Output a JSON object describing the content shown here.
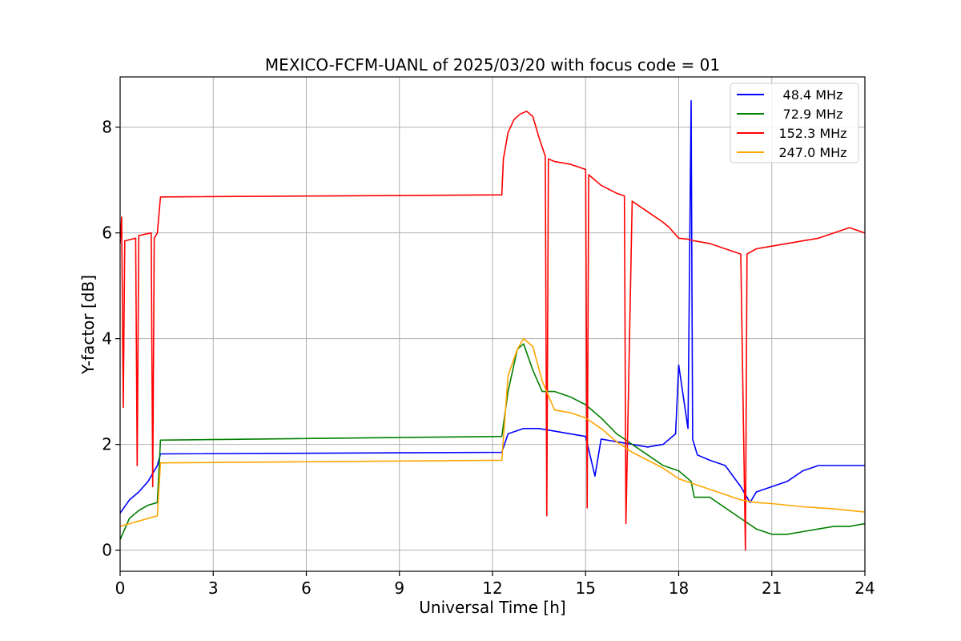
{
  "chart_data": {
    "type": "line",
    "title": "MEXICO-FCFM-UANL of 2025/03/20 with focus code = 01",
    "xlabel": "Universal Time [h]",
    "ylabel": "Y-factor [dB]",
    "xlim": [
      0,
      24
    ],
    "ylim": [
      -0.4,
      8.95
    ],
    "xticks": [
      "0",
      "3",
      "6",
      "9",
      "12",
      "15",
      "18",
      "21",
      "24"
    ],
    "yticks": [
      "0",
      "2",
      "4",
      "6",
      "8"
    ],
    "grid": true,
    "legend_position": "top-right",
    "series": [
      {
        "name": " 48.4 MHz",
        "color": "#0000ff",
        "x": [
          0.0,
          0.3,
          0.6,
          0.9,
          1.2,
          1.3,
          12.3,
          12.5,
          13.0,
          13.5,
          14.0,
          14.5,
          15.0,
          15.3,
          15.5,
          16.0,
          16.5,
          17.0,
          17.5,
          17.9,
          18.0,
          18.3,
          18.4,
          18.45,
          18.6,
          19.0,
          19.5,
          20.0,
          20.3,
          20.5,
          21.0,
          21.5,
          22.0,
          22.5,
          23.0,
          23.5,
          24.0
        ],
        "y": [
          0.7,
          0.95,
          1.1,
          1.3,
          1.6,
          1.82,
          1.85,
          2.2,
          2.3,
          2.3,
          2.25,
          2.2,
          2.15,
          1.4,
          2.1,
          2.05,
          2.0,
          1.95,
          2.0,
          2.2,
          3.5,
          2.3,
          8.5,
          2.1,
          1.8,
          1.7,
          1.6,
          1.2,
          0.9,
          1.1,
          1.2,
          1.3,
          1.5,
          1.6,
          1.6,
          1.6,
          1.6
        ]
      },
      {
        "name": " 72.9 MHz",
        "color": "#008000",
        "x": [
          0.0,
          0.3,
          0.6,
          0.9,
          1.2,
          1.3,
          12.3,
          12.5,
          12.8,
          13.0,
          13.3,
          13.6,
          14.0,
          14.5,
          15.0,
          15.5,
          16.0,
          16.5,
          17.0,
          17.5,
          18.0,
          18.4,
          18.5,
          19.0,
          19.5,
          20.0,
          20.5,
          21.0,
          21.5,
          22.0,
          22.5,
          23.0,
          23.5,
          24.0
        ],
        "y": [
          0.2,
          0.6,
          0.75,
          0.85,
          0.9,
          2.08,
          2.15,
          3.0,
          3.8,
          3.9,
          3.4,
          3.0,
          3.0,
          2.9,
          2.75,
          2.5,
          2.2,
          2.0,
          1.8,
          1.6,
          1.5,
          1.3,
          1.0,
          1.0,
          0.8,
          0.6,
          0.4,
          0.3,
          0.3,
          0.35,
          0.4,
          0.45,
          0.45,
          0.5
        ]
      },
      {
        "name": " 152.3 MHz",
        "color": "#ff0000",
        "x": [
          0.0,
          0.05,
          0.1,
          0.15,
          0.5,
          0.55,
          0.6,
          1.0,
          1.05,
          1.1,
          1.2,
          1.3,
          12.3,
          12.35,
          12.5,
          12.7,
          12.9,
          13.1,
          13.3,
          13.5,
          13.7,
          13.75,
          13.8,
          14.0,
          14.5,
          15.0,
          15.05,
          15.1,
          15.5,
          16.0,
          16.25,
          16.3,
          16.5,
          17.0,
          17.5,
          17.7,
          18.0,
          18.3,
          18.5,
          19.0,
          19.5,
          20.0,
          20.15,
          20.2,
          20.5,
          21.0,
          21.5,
          22.0,
          22.5,
          23.0,
          23.5,
          24.0
        ],
        "y": [
          5.8,
          6.3,
          2.7,
          5.85,
          5.9,
          1.6,
          5.95,
          6.0,
          1.2,
          5.9,
          6.0,
          6.68,
          6.72,
          7.4,
          7.9,
          8.15,
          8.25,
          8.3,
          8.2,
          7.8,
          7.45,
          0.65,
          7.4,
          7.35,
          7.3,
          7.2,
          0.8,
          7.1,
          6.9,
          6.75,
          6.7,
          0.5,
          6.6,
          6.4,
          6.2,
          6.1,
          5.9,
          5.88,
          5.85,
          5.8,
          5.7,
          5.6,
          0.0,
          5.6,
          5.7,
          5.75,
          5.8,
          5.85,
          5.9,
          6.0,
          6.1,
          6.0
        ]
      },
      {
        "name": " 247.0 MHz",
        "color": "#ffa500",
        "x": [
          0.0,
          0.3,
          0.6,
          0.9,
          1.2,
          1.3,
          12.3,
          12.5,
          12.8,
          13.0,
          13.3,
          13.6,
          14.0,
          14.5,
          15.0,
          15.5,
          16.0,
          16.5,
          17.0,
          17.5,
          18.0,
          18.5,
          19.0,
          19.5,
          20.0,
          20.5,
          21.0,
          21.5,
          22.0,
          22.5,
          23.0,
          23.5,
          24.0
        ],
        "y": [
          0.45,
          0.5,
          0.55,
          0.6,
          0.65,
          1.65,
          1.7,
          3.3,
          3.8,
          4.0,
          3.85,
          3.2,
          2.65,
          2.6,
          2.5,
          2.3,
          2.05,
          1.85,
          1.7,
          1.55,
          1.35,
          1.25,
          1.15,
          1.05,
          0.95,
          0.9,
          0.88,
          0.85,
          0.82,
          0.8,
          0.78,
          0.75,
          0.72
        ]
      }
    ]
  }
}
